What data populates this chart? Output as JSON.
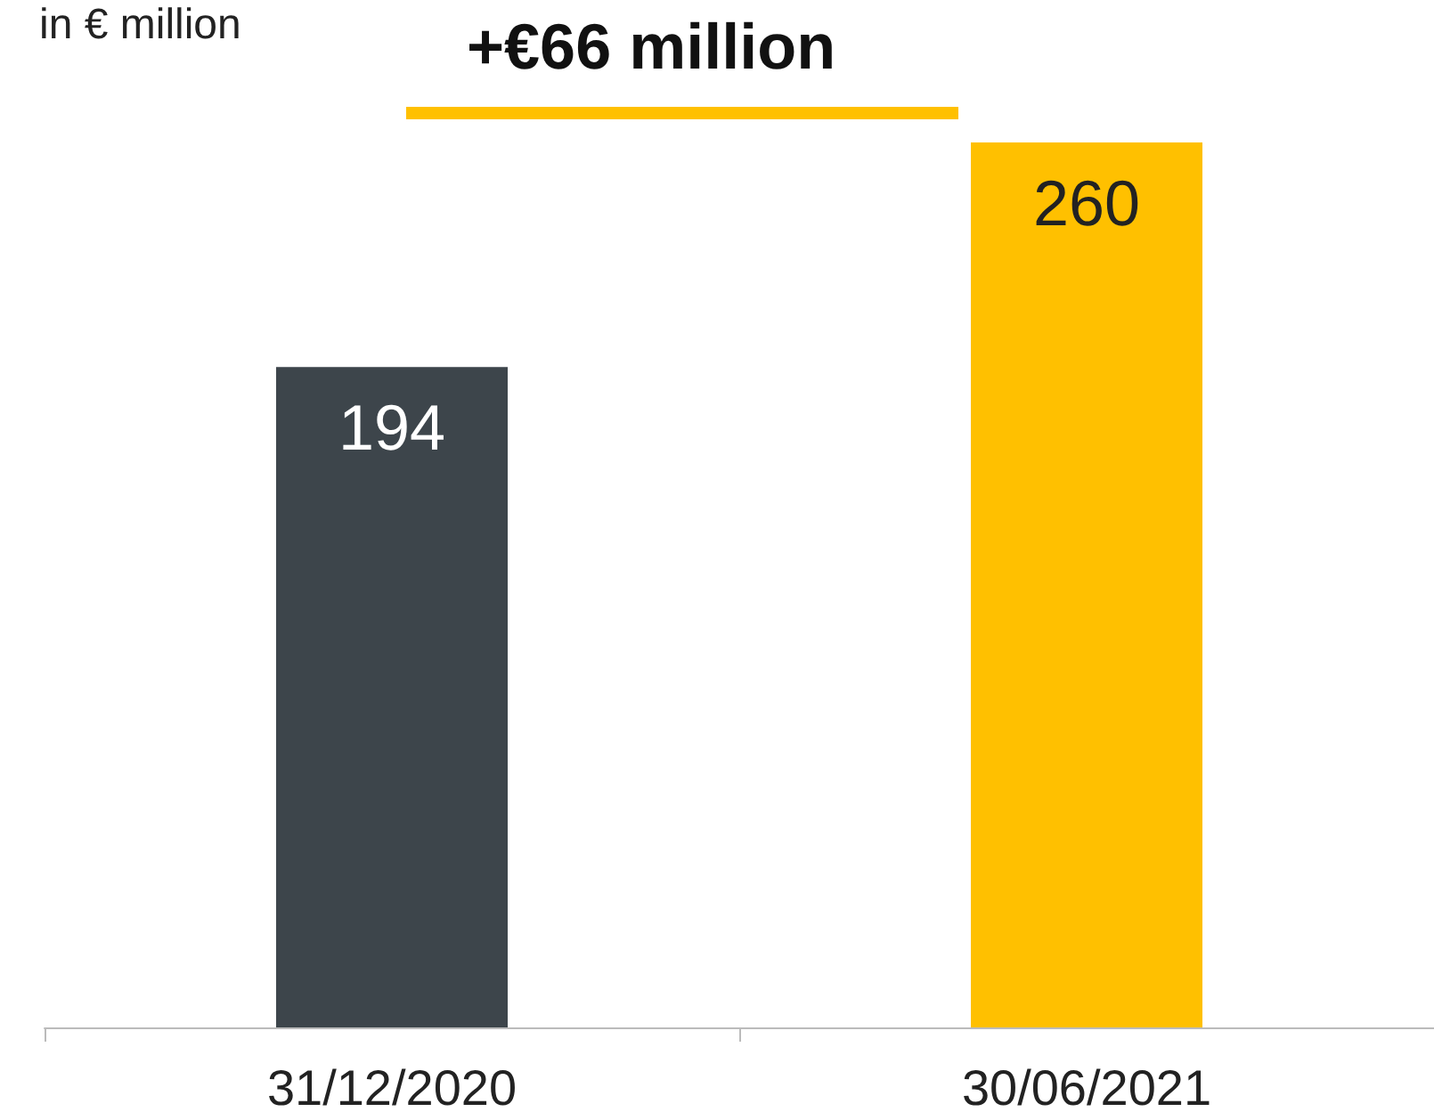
{
  "chart_data": {
    "type": "bar",
    "ylabel": "in € million",
    "annotations": [
      "+€66 million"
    ],
    "categories": [
      "31/12/2020",
      "30/06/2021"
    ],
    "values": [
      194,
      260
    ],
    "colors": [
      "#3d454b",
      "#ffc000"
    ],
    "data_labels": true
  }
}
